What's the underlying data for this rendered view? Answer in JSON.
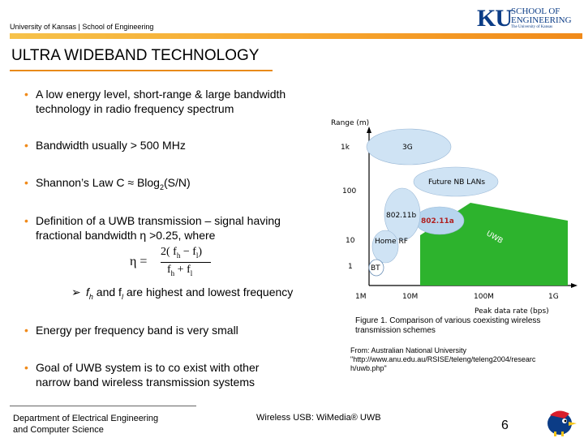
{
  "header": {
    "university": "University of Kansas | School of Engineering",
    "logo_mark": "KU",
    "logo_line1": "SCHOOL OF",
    "logo_line2": "ENGINEERING",
    "logo_sub": "The University of Kansas"
  },
  "slide": {
    "title": "ULTRA WIDEBAND TECHNOLOGY",
    "bullets": [
      {
        "line1": "A low energy level, short-range & large bandwidth",
        "line2": "technology in radio  frequency spectrum"
      },
      {
        "line1": "Bandwidth usually > 500 MHz"
      },
      {
        "line1": "Shannon’s Law  C ≈ Blog",
        "sub": "2",
        "rest": "(S/N)"
      },
      {
        "line1": "Definition of a UWB transmission – signal having",
        "line2": "fractional bandwidth η >0.25, where"
      },
      {
        "line1": "Energy per frequency band is very small"
      },
      {
        "line1": " Goal of UWB system is to co exist with other",
        "line2": "narrow band wireless transmission systems"
      }
    ],
    "formula": {
      "lhs": "η =",
      "num": "2( f",
      "num_h": "h",
      "num_mid": " − f",
      "num_l": "l",
      "num_end": ")",
      "den": "f",
      "den_h": "h",
      "den_mid": " + f",
      "den_l": "l"
    },
    "arrow_item": {
      "f": "f",
      "h": "h",
      "mid": " and f",
      "l": "l",
      "rest": " are highest and lowest frequency"
    }
  },
  "figure": {
    "y_axis_label": "Range (m)",
    "x_axis_label": "Peak data rate (bps)",
    "y_ticks": [
      "1k",
      "100",
      "10",
      "1"
    ],
    "x_ticks": [
      "1M",
      "10M",
      "100M",
      "1G"
    ],
    "regions": [
      "3G",
      "Future NB LANs",
      "802.11b",
      "802.11a",
      "Home RF",
      "BT",
      "UWB"
    ],
    "caption": "Figure 1. Comparison of various coexisting wireless transmission schemes",
    "source_line1": "From: Australian National University",
    "source_line2": "\"http://www.anu.edu.au/RSISE/teleng/teleng2004/researc",
    "source_line3": "h/uwb.php\""
  },
  "footer": {
    "dept_line1": "Department of Electrical Engineering",
    "dept_line2": "and Computer Science",
    "center": "Wireless USB: WiMedia® UWB",
    "page": "6"
  },
  "colors": {
    "accent_orange": "#f08a1a",
    "ku_blue": "#0b3c86",
    "uwb_green": "#2db32d",
    "bubble_blue": "#cfe3f4"
  }
}
